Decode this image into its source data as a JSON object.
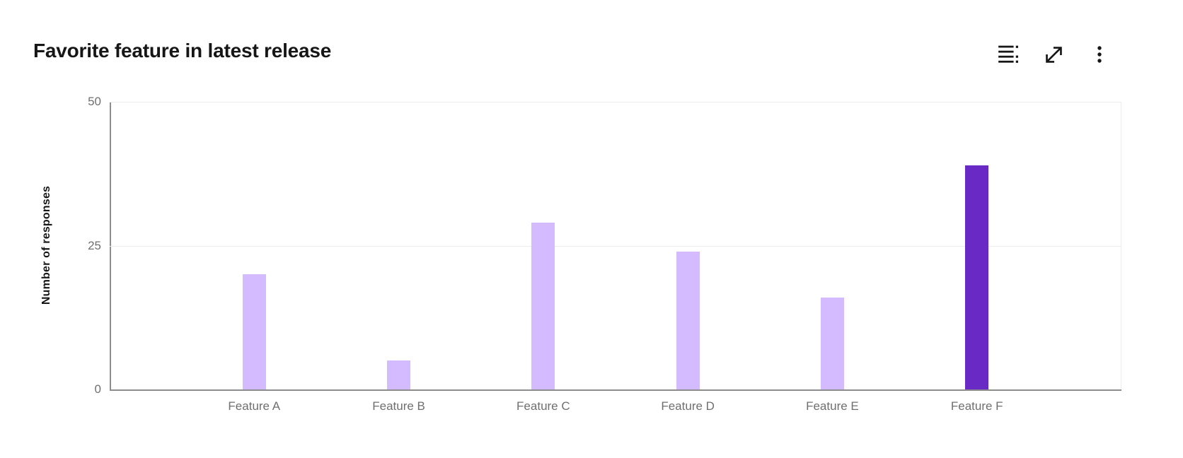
{
  "header": {
    "title": "Favorite feature in latest release",
    "toolbar": [
      {
        "name": "show-as-data-table",
        "icon": "data-table-icon"
      },
      {
        "name": "make-fullscreen",
        "icon": "maximize-icon"
      },
      {
        "name": "more-options",
        "icon": "overflow-menu-icon"
      }
    ]
  },
  "chart_data": {
    "type": "bar",
    "title": "Favorite feature in latest release",
    "categories": [
      "Feature A",
      "Feature B",
      "Feature C",
      "Feature D",
      "Feature E",
      "Feature F"
    ],
    "values": [
      20,
      5,
      29,
      24,
      16,
      39
    ],
    "xlabel": "",
    "ylabel": "Number of responses",
    "ylim": [
      0,
      50
    ],
    "yticks": [
      0,
      25,
      50
    ],
    "grid": true,
    "legend": "none",
    "bar_color": "#d4bbff",
    "highlight_color": "#6929c4",
    "highlight_index": 5
  },
  "colors": {
    "background": "#ffffff",
    "title_text": "#161616",
    "axis_line": "#8d8d8d",
    "gridline": "#ececec",
    "tick_label": "#6f6f6f",
    "icon": "#161616"
  }
}
